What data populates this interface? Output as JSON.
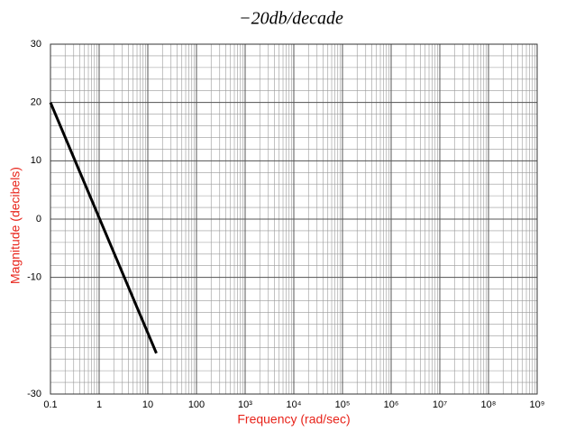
{
  "chart_data": {
    "type": "line",
    "title": "−20db/decade",
    "x_label": "Frequency (rad/sec)",
    "y_label": "Magnitude (decibels)",
    "x": [
      0.1,
      15
    ],
    "series": [
      {
        "name": "Magnitude",
        "color": "#000000",
        "values": [
          20,
          -23
        ]
      }
    ],
    "xlim": [
      0.1,
      1000000000
    ],
    "ylim": [
      -30,
      30
    ],
    "x_log": true,
    "grid": true,
    "minor_grid": true,
    "xticks": [
      0.1,
      1,
      10,
      100,
      {
        "value": 1000,
        "label": "10³"
      },
      {
        "value": 10000,
        "label": "10⁴"
      },
      {
        "value": 100000,
        "label": "10⁵"
      },
      {
        "value": 1000000,
        "label": "10⁶"
      },
      {
        "value": 10000000,
        "label": "10⁷"
      },
      {
        "value": 100000000,
        "label": "10⁸"
      },
      {
        "value": 1000000000,
        "label": "10⁹"
      }
    ],
    "yticks": [
      30,
      20,
      10,
      0,
      -10,
      -30
    ]
  }
}
